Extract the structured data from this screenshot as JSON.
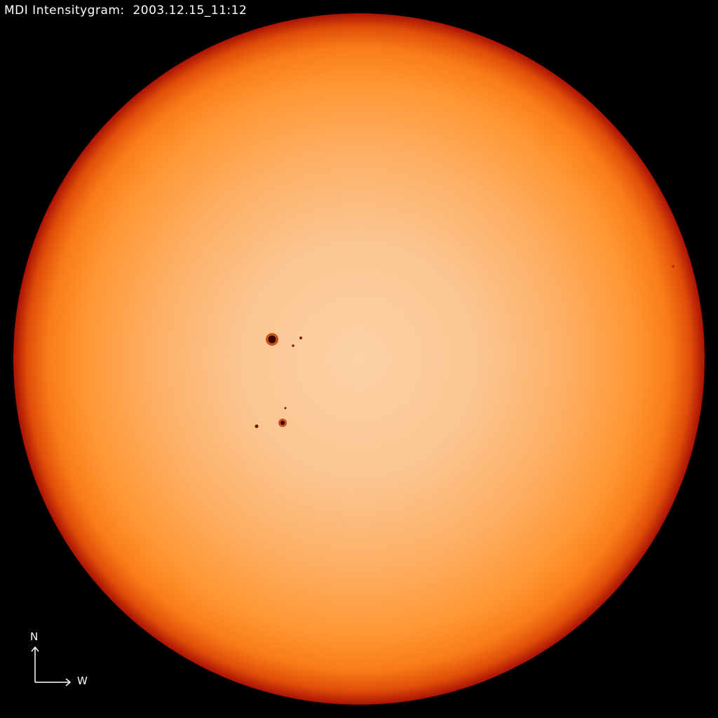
{
  "title": "MDI Intensitygram:  2003.12.15_11:12",
  "compass": {
    "north": "N",
    "west": "W"
  },
  "colors": {
    "background": "#000000",
    "disk_center": "#fcd2a6",
    "disk_mid": "#ff9b3a",
    "limb": "#a80c00",
    "sunspot": "#4a0000"
  }
}
